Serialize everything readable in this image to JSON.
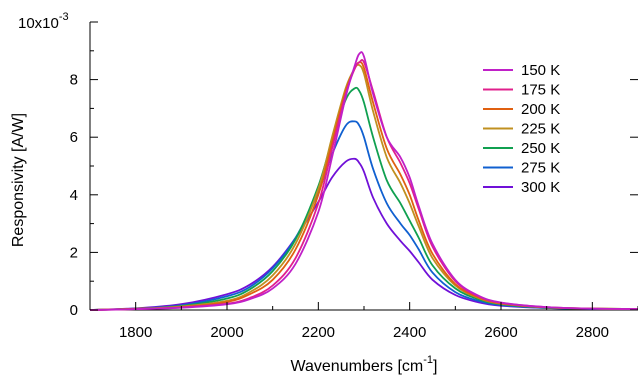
{
  "chart_data": {
    "type": "line",
    "xlabel": "Wavenumbers [cm",
    "xlabel_sup": "-1",
    "xlabel_suffix": "]",
    "ylabel": "Responsivity [A/W]",
    "y_multiplier": "10x10",
    "y_multiplier_sup": "-3",
    "xlim": [
      1700,
      2900
    ],
    "ylim": [
      0,
      10
    ],
    "x_ticks": [
      "1800",
      "2000",
      "2200",
      "2400",
      "2600",
      "2800"
    ],
    "y_ticks": [
      "0",
      "2",
      "4",
      "6",
      "8"
    ],
    "legend_position": "top-right",
    "x": [
      1700,
      1800,
      1900,
      2000,
      2050,
      2100,
      2150,
      2200,
      2230,
      2260,
      2280,
      2290,
      2300,
      2320,
      2350,
      2380,
      2400,
      2420,
      2450,
      2500,
      2550,
      2600,
      2700,
      2800,
      2900
    ],
    "series": [
      {
        "name": "150 K",
        "color": "#c020c8",
        "values": [
          0.0,
          0.03,
          0.08,
          0.2,
          0.38,
          0.75,
          1.6,
          3.4,
          5.3,
          7.4,
          8.5,
          8.9,
          8.8,
          7.5,
          6.0,
          5.3,
          4.6,
          3.6,
          2.3,
          1.05,
          0.5,
          0.26,
          0.1,
          0.05,
          0.03
        ]
      },
      {
        "name": "175 K",
        "color": "#e0208c",
        "values": [
          0.0,
          0.03,
          0.09,
          0.22,
          0.42,
          0.85,
          1.8,
          3.7,
          5.6,
          7.5,
          8.4,
          8.6,
          8.6,
          7.6,
          6.0,
          5.1,
          4.4,
          3.5,
          2.2,
          1.0,
          0.48,
          0.25,
          0.1,
          0.05,
          0.03
        ]
      },
      {
        "name": "200 K",
        "color": "#e06010",
        "values": [
          0.0,
          0.04,
          0.1,
          0.28,
          0.55,
          1.05,
          2.1,
          4.0,
          5.8,
          7.6,
          8.4,
          8.6,
          8.4,
          7.2,
          5.6,
          4.7,
          4.0,
          3.1,
          1.95,
          0.9,
          0.44,
          0.23,
          0.09,
          0.05,
          0.03
        ]
      },
      {
        "name": "225 K",
        "color": "#c09020",
        "values": [
          0.0,
          0.04,
          0.12,
          0.32,
          0.62,
          1.2,
          2.3,
          4.2,
          6.0,
          7.7,
          8.4,
          8.5,
          8.2,
          6.9,
          5.3,
          4.4,
          3.7,
          2.9,
          1.8,
          0.85,
          0.42,
          0.22,
          0.09,
          0.05,
          0.03
        ]
      },
      {
        "name": "250 K",
        "color": "#10a050",
        "values": [
          0.0,
          0.04,
          0.14,
          0.4,
          0.72,
          1.35,
          2.45,
          4.3,
          5.9,
          7.3,
          7.7,
          7.6,
          7.2,
          6.0,
          4.5,
          3.7,
          3.1,
          2.5,
          1.55,
          0.75,
          0.38,
          0.2,
          0.08,
          0.05,
          0.03
        ]
      },
      {
        "name": "275 K",
        "color": "#1060d0",
        "values": [
          0.0,
          0.05,
          0.16,
          0.48,
          0.8,
          1.45,
          2.5,
          4.1,
          5.4,
          6.4,
          6.55,
          6.4,
          6.0,
          4.9,
          3.7,
          3.0,
          2.6,
          2.1,
          1.3,
          0.62,
          0.32,
          0.17,
          0.07,
          0.04,
          0.03
        ]
      },
      {
        "name": "300 K",
        "color": "#7010d8",
        "values": [
          0.0,
          0.06,
          0.2,
          0.55,
          0.88,
          1.5,
          2.5,
          3.75,
          4.6,
          5.15,
          5.25,
          5.1,
          4.8,
          3.9,
          3.0,
          2.4,
          2.05,
          1.65,
          1.05,
          0.52,
          0.27,
          0.15,
          0.07,
          0.04,
          0.03
        ]
      }
    ]
  }
}
